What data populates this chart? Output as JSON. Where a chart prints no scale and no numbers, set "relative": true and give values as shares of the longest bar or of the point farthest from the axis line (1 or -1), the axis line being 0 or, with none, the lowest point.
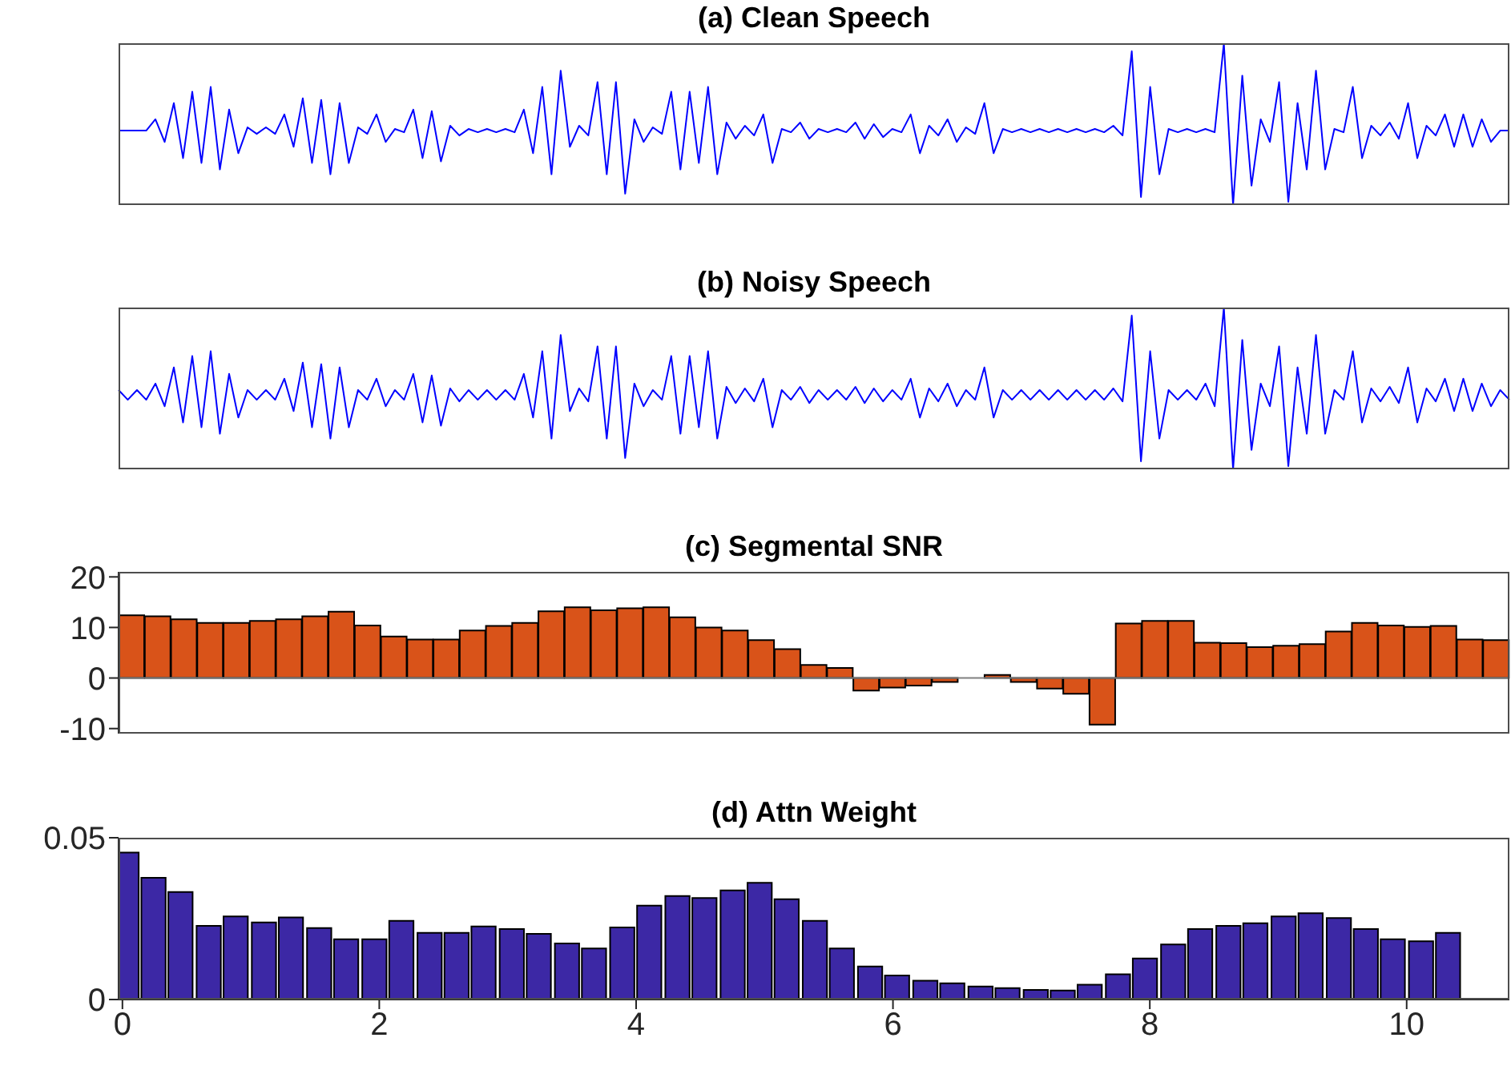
{
  "chart_data": [
    {
      "type": "line",
      "title": "(a) Clean Speech",
      "relative": true,
      "tick_labels": false,
      "color": "#0000ff",
      "categories": [
        null,
        null,
        null,
        null,
        null,
        null,
        null,
        null,
        null,
        null,
        null,
        null,
        null,
        null,
        null,
        null,
        null,
        null,
        null,
        null,
        null,
        null,
        null,
        null,
        null,
        null,
        null,
        null,
        null,
        null,
        null,
        null,
        null,
        null,
        null,
        null,
        null,
        null,
        null,
        null,
        null,
        null,
        null,
        null,
        null,
        null,
        null,
        null,
        null,
        null,
        null,
        null,
        null,
        null,
        null,
        null,
        null,
        null,
        null,
        null,
        null,
        null,
        null,
        null,
        null,
        null,
        null,
        null,
        null,
        null,
        null,
        null,
        null,
        null,
        null,
        null,
        null,
        null,
        null,
        null,
        null,
        null,
        null,
        null,
        null,
        null,
        null,
        null,
        null,
        null,
        null,
        null,
        null,
        null,
        null,
        null,
        null,
        null,
        null,
        null,
        null,
        null,
        null,
        null,
        null,
        null,
        null,
        null,
        null,
        null,
        null,
        null,
        null,
        null,
        null,
        null,
        null,
        null,
        null,
        null,
        null,
        null,
        null,
        null,
        null,
        null,
        null,
        null,
        null,
        null,
        null,
        null,
        null,
        null,
        null,
        null,
        null,
        null,
        null,
        null,
        null,
        null,
        null,
        null,
        null,
        null,
        null,
        null,
        null,
        null,
        null,
        null
      ],
      "values": [
        0.46,
        0.46,
        0.46,
        0.46,
        0.53,
        0.39,
        0.63,
        0.29,
        0.7,
        0.26,
        0.73,
        0.22,
        0.59,
        0.32,
        0.48,
        0.44,
        0.48,
        0.44,
        0.56,
        0.36,
        0.66,
        0.26,
        0.65,
        0.19,
        0.63,
        0.26,
        0.48,
        0.44,
        0.56,
        0.39,
        0.47,
        0.45,
        0.59,
        0.29,
        0.58,
        0.27,
        0.49,
        0.43,
        0.47,
        0.45,
        0.47,
        0.45,
        0.47,
        0.45,
        0.59,
        0.32,
        0.73,
        0.19,
        0.83,
        0.36,
        0.49,
        0.43,
        0.76,
        0.19,
        0.76,
        0.07,
        0.53,
        0.39,
        0.48,
        0.44,
        0.7,
        0.22,
        0.7,
        0.26,
        0.73,
        0.19,
        0.51,
        0.41,
        0.49,
        0.43,
        0.56,
        0.26,
        0.47,
        0.45,
        0.51,
        0.41,
        0.47,
        0.45,
        0.47,
        0.45,
        0.51,
        0.41,
        0.5,
        0.42,
        0.47,
        0.45,
        0.56,
        0.32,
        0.49,
        0.43,
        0.53,
        0.39,
        0.48,
        0.44,
        0.63,
        0.32,
        0.47,
        0.45,
        0.47,
        0.45,
        0.47,
        0.45,
        0.47,
        0.45,
        0.47,
        0.45,
        0.47,
        0.45,
        0.49,
        0.43,
        0.95,
        0.05,
        0.73,
        0.19,
        0.47,
        0.45,
        0.47,
        0.45,
        0.47,
        0.45,
        1.0,
        0.0,
        0.8,
        0.12,
        0.53,
        0.39,
        0.76,
        0.02,
        0.63,
        0.22,
        0.83,
        0.22,
        0.47,
        0.45,
        0.73,
        0.29,
        0.49,
        0.43,
        0.51,
        0.41,
        0.63,
        0.29,
        0.49,
        0.43,
        0.56,
        0.36,
        0.56,
        0.36,
        0.53,
        0.39,
        0.46,
        0.46
      ]
    },
    {
      "type": "line",
      "title": "(b) Noisy Speech",
      "relative": true,
      "tick_labels": false,
      "color": "#0000ff",
      "categories": [
        null,
        null,
        null,
        null,
        null,
        null,
        null,
        null,
        null,
        null,
        null,
        null,
        null,
        null,
        null,
        null,
        null,
        null,
        null,
        null,
        null,
        null,
        null,
        null,
        null,
        null,
        null,
        null,
        null,
        null,
        null,
        null,
        null,
        null,
        null,
        null,
        null,
        null,
        null,
        null,
        null,
        null,
        null,
        null,
        null,
        null,
        null,
        null,
        null,
        null,
        null,
        null,
        null,
        null,
        null,
        null,
        null,
        null,
        null,
        null,
        null,
        null,
        null,
        null,
        null,
        null,
        null,
        null,
        null,
        null,
        null,
        null,
        null,
        null,
        null,
        null,
        null,
        null,
        null,
        null,
        null,
        null,
        null,
        null,
        null,
        null,
        null,
        null,
        null,
        null,
        null,
        null,
        null,
        null,
        null,
        null,
        null,
        null,
        null,
        null,
        null,
        null,
        null,
        null,
        null,
        null,
        null,
        null,
        null,
        null,
        null,
        null,
        null,
        null,
        null,
        null,
        null,
        null,
        null,
        null,
        null,
        null,
        null,
        null,
        null,
        null,
        null,
        null,
        null,
        null,
        null,
        null,
        null,
        null,
        null,
        null,
        null,
        null,
        null,
        null,
        null,
        null,
        null,
        null,
        null,
        null,
        null,
        null,
        null,
        null,
        null,
        null
      ],
      "values": [
        0.49,
        0.43,
        0.49,
        0.43,
        0.53,
        0.39,
        0.63,
        0.29,
        0.7,
        0.26,
        0.73,
        0.22,
        0.59,
        0.32,
        0.49,
        0.43,
        0.49,
        0.43,
        0.56,
        0.36,
        0.66,
        0.26,
        0.65,
        0.19,
        0.63,
        0.26,
        0.49,
        0.43,
        0.56,
        0.39,
        0.49,
        0.43,
        0.59,
        0.29,
        0.58,
        0.27,
        0.5,
        0.42,
        0.49,
        0.43,
        0.49,
        0.43,
        0.49,
        0.43,
        0.59,
        0.32,
        0.73,
        0.19,
        0.83,
        0.36,
        0.5,
        0.42,
        0.76,
        0.19,
        0.76,
        0.07,
        0.53,
        0.39,
        0.49,
        0.43,
        0.7,
        0.22,
        0.7,
        0.26,
        0.73,
        0.19,
        0.51,
        0.41,
        0.5,
        0.42,
        0.56,
        0.26,
        0.49,
        0.43,
        0.51,
        0.41,
        0.49,
        0.43,
        0.49,
        0.43,
        0.51,
        0.41,
        0.5,
        0.42,
        0.49,
        0.43,
        0.56,
        0.32,
        0.5,
        0.42,
        0.53,
        0.39,
        0.49,
        0.43,
        0.63,
        0.32,
        0.49,
        0.43,
        0.49,
        0.43,
        0.49,
        0.43,
        0.49,
        0.43,
        0.49,
        0.43,
        0.49,
        0.43,
        0.5,
        0.42,
        0.95,
        0.05,
        0.73,
        0.19,
        0.49,
        0.43,
        0.49,
        0.43,
        0.53,
        0.39,
        1.0,
        0.0,
        0.8,
        0.12,
        0.53,
        0.39,
        0.76,
        0.02,
        0.63,
        0.22,
        0.83,
        0.22,
        0.49,
        0.43,
        0.73,
        0.29,
        0.5,
        0.42,
        0.51,
        0.41,
        0.63,
        0.29,
        0.5,
        0.42,
        0.56,
        0.36,
        0.56,
        0.36,
        0.53,
        0.39,
        0.49,
        0.43
      ]
    },
    {
      "type": "bar",
      "title": "(c) Segmental SNR",
      "tick_labels": "y",
      "color": "#d95319",
      "categories": [
        null,
        null,
        null,
        null,
        null,
        null,
        null,
        null,
        null,
        null,
        null,
        null,
        null,
        null,
        null,
        null,
        null,
        null,
        null,
        null,
        null,
        null,
        null,
        null,
        null,
        null,
        null,
        null,
        null,
        null,
        null,
        null,
        null,
        null,
        null,
        null,
        null,
        null,
        null,
        null,
        null,
        null,
        null,
        null,
        null,
        null,
        null,
        null,
        null,
        null,
        null,
        null,
        null
      ],
      "values": [
        12.4,
        12.2,
        11.6,
        10.9,
        10.9,
        11.3,
        11.6,
        12.2,
        13.1,
        10.4,
        8.2,
        7.6,
        7.6,
        9.4,
        10.3,
        10.9,
        13.2,
        14.0,
        13.4,
        13.8,
        14.0,
        12.0,
        10.0,
        9.4,
        7.5,
        5.7,
        2.6,
        2.0,
        -2.5,
        -1.9,
        -1.5,
        -0.8,
        0,
        0.6,
        -0.8,
        -2.1,
        -3.1,
        -9.2,
        10.8,
        11.3,
        11.3,
        7.0,
        6.9,
        6.1,
        6.4,
        6.7,
        9.2,
        10.9,
        10.4,
        10.1,
        10.3,
        7.6,
        7.5
      ],
      "ylim": [
        -11,
        21
      ],
      "yticks": [
        20,
        10,
        0,
        -10
      ],
      "ref_lines": [
        {
          "axis": "y",
          "value": 0,
          "color": "#808080"
        }
      ]
    },
    {
      "type": "bar",
      "title": "(d) Attn Weight",
      "color": "#3c28a5",
      "x": [
        0.03,
        0.24,
        0.45,
        0.67,
        0.88,
        1.1,
        1.31,
        1.53,
        1.74,
        1.96,
        2.17,
        2.39,
        2.6,
        2.81,
        3.03,
        3.24,
        3.46,
        3.67,
        3.89,
        4.1,
        4.32,
        4.53,
        4.75,
        4.96,
        5.17,
        5.39,
        5.6,
        5.82,
        6.03,
        6.25,
        6.46,
        6.68,
        6.89,
        7.11,
        7.32,
        7.53,
        7.75,
        7.96,
        8.18,
        8.39,
        8.61,
        8.82,
        9.04,
        9.25,
        9.47,
        9.68,
        9.89,
        10.11,
        10.32
      ],
      "values": [
        0.0454,
        0.0376,
        0.0332,
        0.0228,
        0.0257,
        0.0238,
        0.0254,
        0.0221,
        0.0186,
        0.0186,
        0.0243,
        0.0206,
        0.0206,
        0.0226,
        0.0218,
        0.0203,
        0.0173,
        0.0158,
        0.0223,
        0.029,
        0.032,
        0.0314,
        0.0337,
        0.0361,
        0.031,
        0.0243,
        0.0158,
        0.0102,
        0.0074,
        0.0058,
        0.005,
        0.004,
        0.0035,
        0.003,
        0.0028,
        0.0046,
        0.0078,
        0.0127,
        0.017,
        0.0218,
        0.0228,
        0.0236,
        0.0257,
        0.0267,
        0.0252,
        0.0218,
        0.0186,
        0.018,
        0.0206
      ],
      "xlim": [
        -0.03,
        10.8
      ],
      "xticks": [
        0,
        2,
        4,
        6,
        8,
        10
      ],
      "ylim": [
        0,
        0.05
      ],
      "yticks": [
        0,
        0.05
      ]
    }
  ]
}
